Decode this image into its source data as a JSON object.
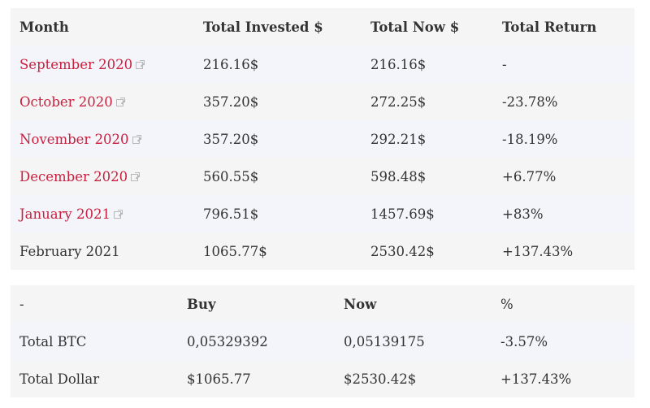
{
  "monthly_table": {
    "headers": [
      "Month",
      "Total Invested $",
      "Total Now $",
      "Total Return"
    ],
    "rows": [
      {
        "month": "September 2020",
        "linked": true,
        "invested": "216.16$",
        "now": "216.16$",
        "return": "-"
      },
      {
        "month": "October 2020",
        "linked": true,
        "invested": "357.20$",
        "now": "272.25$",
        "return": "-23.78%"
      },
      {
        "month": "November 2020",
        "linked": true,
        "invested": "357.20$",
        "now": "292.21$",
        "return": "-18.19%"
      },
      {
        "month": "December 2020",
        "linked": true,
        "invested": "560.55$",
        "now": "598.48$",
        "return": "+6.77%"
      },
      {
        "month": "January 2021",
        "linked": true,
        "invested": "796.51$",
        "now": "1457.69$",
        "return": "+83%"
      },
      {
        "month": "February 2021",
        "linked": false,
        "invested": "1065.77$",
        "now": "2530.42$",
        "return": "+137.43%"
      }
    ]
  },
  "summary_table": {
    "headers": [
      "-",
      "Buy",
      "Now",
      "%"
    ],
    "rows": [
      {
        "label": "Total BTC",
        "buy": "0,05329392",
        "now": "0,05139175",
        "pct": "-3.57%"
      },
      {
        "label": "Total Dollar",
        "buy": "$1065.77",
        "now": "$2530.42$",
        "pct": "+137.43%"
      }
    ]
  },
  "colors": {
    "link": "#c8213f",
    "row_odd": "#f5f5f5",
    "row_even": "#f4f4fb",
    "text": "#333333"
  },
  "icons": {
    "month_link": "external-link-icon"
  }
}
